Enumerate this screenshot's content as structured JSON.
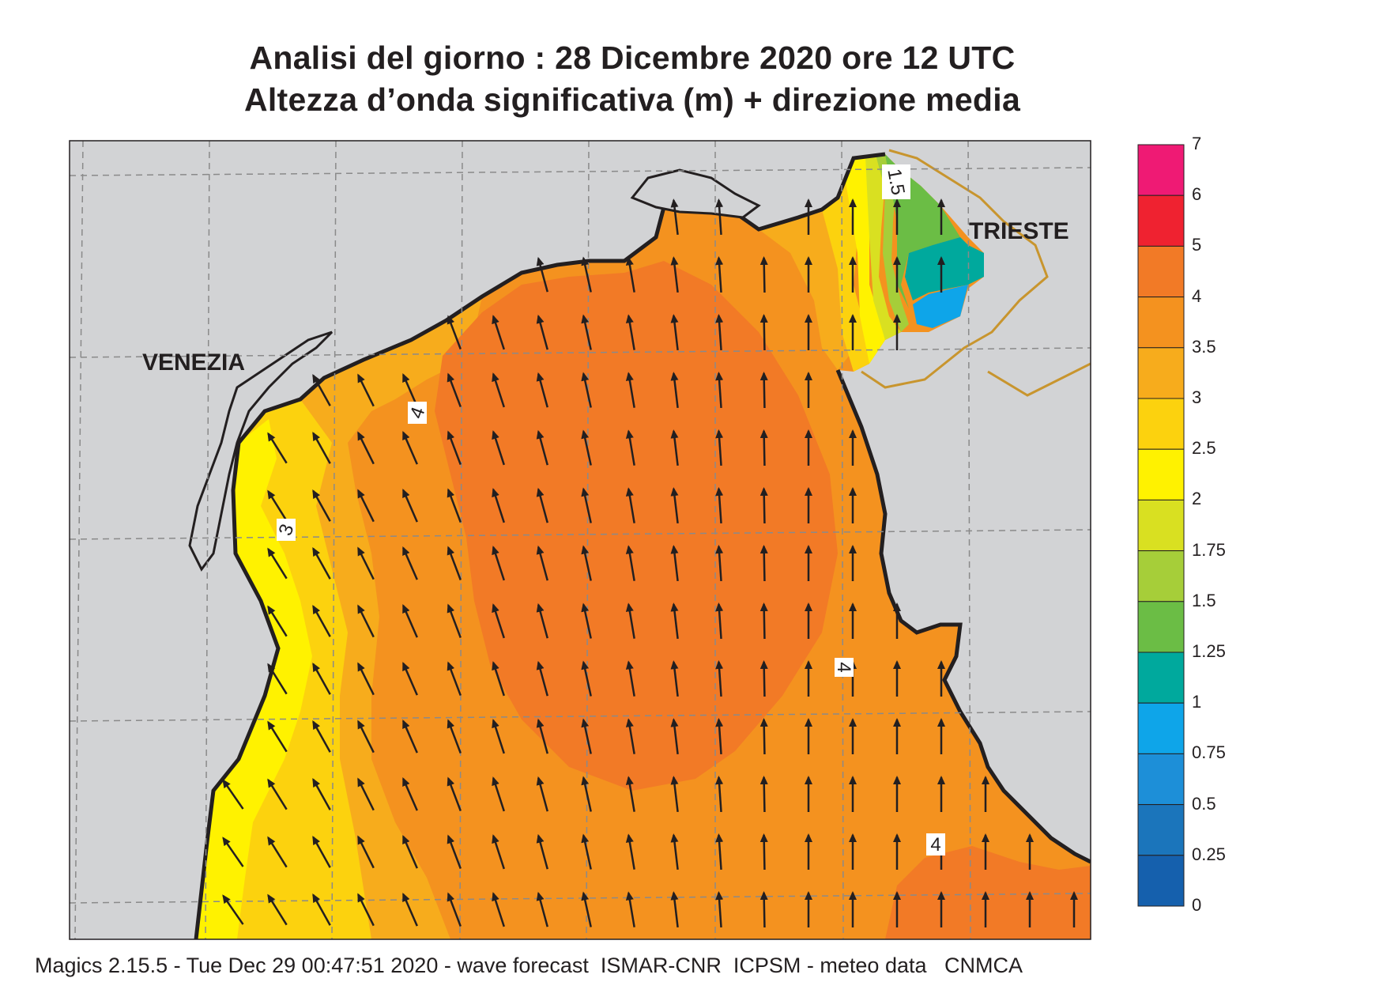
{
  "title": {
    "line1": "Analisi del giorno :  28 Dicembre  2020   ore 12 UTC",
    "line2": "Altezza d’onda significativa (m) + direzione media"
  },
  "map": {
    "cities": [
      {
        "name": "VENEZIA"
      },
      {
        "name": "TRIESTE"
      }
    ],
    "contour_labels": [
      "4",
      "3",
      "1.5",
      "4",
      "4"
    ],
    "wave_direction": "from south-southeast toward north-northwest",
    "land_color": "#d2d3d5",
    "coast_color": "#231f20",
    "border_color": "#c8952e"
  },
  "colorbar": {
    "levels": [
      "7",
      "6",
      "5",
      "4",
      "3.5",
      "3",
      "2.5",
      "2",
      "1.75",
      "1.5",
      "1.25",
      "1",
      "0.75",
      "0.5",
      "0.25",
      "0"
    ],
    "colors": [
      "#ef1a74",
      "#ef2230",
      "#f27a26",
      "#f4921f",
      "#f7ac1c",
      "#fcd20e",
      "#fff200",
      "#d9e021",
      "#a6ce39",
      "#6bbd45",
      "#00a99d",
      "#0ea5e9",
      "#1d8fd8",
      "#1b75bb",
      "#1560ad"
    ]
  },
  "footer": "Magics 2.15.5 - Tue Dec 29 00:47:51 2020 - wave forecast  ISMAR-CNR  ICPSM - meteo data   CNMCA"
}
